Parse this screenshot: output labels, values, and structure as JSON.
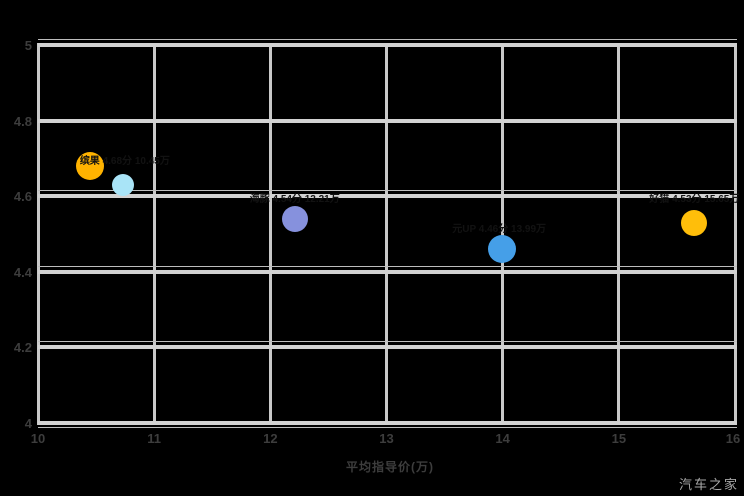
{
  "watermark": "汽车之家",
  "colors": {
    "background": "#000000",
    "gridline": "#c9c9c9",
    "gridline_thick": "#d2d2d2",
    "tick_text": "#3d3d3d",
    "annotation_text": "#121212",
    "watermark_text": "#a9a9a9"
  },
  "chart_data": {
    "type": "scatter",
    "title": "",
    "xlabel": "平均指导价(万)",
    "ylabel": "",
    "xlim": [
      10,
      16
    ],
    "ylim": [
      4,
      5
    ],
    "grid": true,
    "legend": false,
    "xticks": [
      {
        "v": 10,
        "label": "10"
      },
      {
        "v": 11,
        "label": "11"
      },
      {
        "v": 12,
        "label": "12"
      },
      {
        "v": 13,
        "label": "13"
      },
      {
        "v": 14,
        "label": "14"
      },
      {
        "v": 15,
        "label": "15"
      },
      {
        "v": 16,
        "label": "16"
      }
    ],
    "yticks": [
      {
        "v": 5,
        "label": "5",
        "double": true
      },
      {
        "v": 4.8,
        "label": "4.8",
        "double": false
      },
      {
        "v": 4.6,
        "label": "4.6",
        "double": true
      },
      {
        "v": 4.4,
        "label": "4.4",
        "double": true
      },
      {
        "v": 4.2,
        "label": "4.2",
        "double": true
      },
      {
        "v": 4,
        "label": "4",
        "double": true
      }
    ],
    "points": [
      {
        "x": 10.45,
        "y": 4.68,
        "r": 14,
        "color": "#FFB300"
      },
      {
        "x": 10.73,
        "y": 4.63,
        "r": 11,
        "color": "#A9E4F7"
      },
      {
        "x": 12.21,
        "y": 4.54,
        "r": 13,
        "color": "#8691DD"
      },
      {
        "x": 13.99,
        "y": 4.46,
        "r": 14,
        "color": "#459FE8"
      },
      {
        "x": 15.65,
        "y": 4.53,
        "r": 13,
        "color": "#FFBE0A"
      }
    ],
    "annotations": [
      {
        "text": "缤果 4.68分 10.45万",
        "x": 10.36,
        "y": 4.69,
        "anchor": "left"
      },
      {
        "text": "海豚 4.54分 12.21万",
        "x": 12.21,
        "y": 4.59,
        "anchor": "center"
      },
      {
        "text": "元UP 4.46分 13.99万",
        "x": 13.97,
        "y": 4.51,
        "anchor": "center"
      },
      {
        "text": "好猫 4.53分 15.65万",
        "x": 15.65,
        "y": 4.59,
        "anchor": "center"
      }
    ]
  }
}
